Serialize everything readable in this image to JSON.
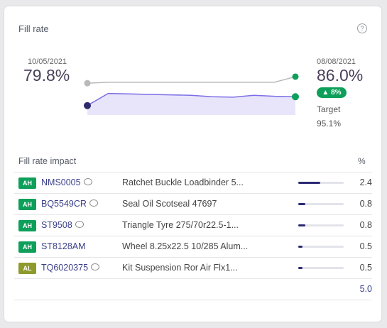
{
  "card": {
    "title": "Fill rate",
    "help_symbol": "?"
  },
  "summary": {
    "start_date": "10/05/2021",
    "start_value": "79.8%",
    "end_date": "08/08/2021",
    "end_value": "86.0%",
    "delta": "8%",
    "target_label": "Target",
    "target_value": "95.1%"
  },
  "chart_data": {
    "type": "line",
    "series": [
      {
        "values": [
          79.8,
          82.4,
          82.3,
          82.2,
          82.1,
          82.0,
          81.7,
          81.6,
          82.0,
          81.8,
          81.7
        ]
      },
      {
        "values": [
          84.6,
          84.8,
          84.8,
          84.8,
          84.8,
          84.8,
          84.8,
          84.8,
          84.8,
          84.8,
          86.0
        ]
      }
    ],
    "colors": {
      "line": "#7b6ee6",
      "fill": "#e8e5fb",
      "start_dot": "#2f2c6e",
      "end_dot": "#0e9f5a",
      "flat_line": "#b9b9b9"
    }
  },
  "impact": {
    "title": "Fill rate impact",
    "pct_header": "%",
    "rows": [
      {
        "badge": "AH",
        "badge_color": "#0e9f5a",
        "code": "NMS0005",
        "has_comment": true,
        "desc": "Ratchet Buckle Loadbinder 5...",
        "value": "2.4",
        "share": 0.48
      },
      {
        "badge": "AH",
        "badge_color": "#0e9f5a",
        "code": "BQ5549CR",
        "has_comment": true,
        "desc": "Seal Oil Scotseal 47697",
        "value": "0.8",
        "share": 0.16
      },
      {
        "badge": "AH",
        "badge_color": "#0e9f5a",
        "code": "ST9508",
        "has_comment": true,
        "desc": "Triangle Tyre 275/70r22.5-1...",
        "value": "0.8",
        "share": 0.16
      },
      {
        "badge": "AH",
        "badge_color": "#0e9f5a",
        "code": "ST8128AM",
        "has_comment": false,
        "desc": "Wheel 8.25x22.5 10/285 Alum...",
        "value": "0.5",
        "share": 0.1
      },
      {
        "badge": "AL",
        "badge_color": "#8f9a2c",
        "code": "TQ6020375",
        "has_comment": true,
        "desc": "Kit Suspension Ror Air Flx1...",
        "value": "0.5",
        "share": 0.1
      }
    ],
    "total": "5.0"
  }
}
